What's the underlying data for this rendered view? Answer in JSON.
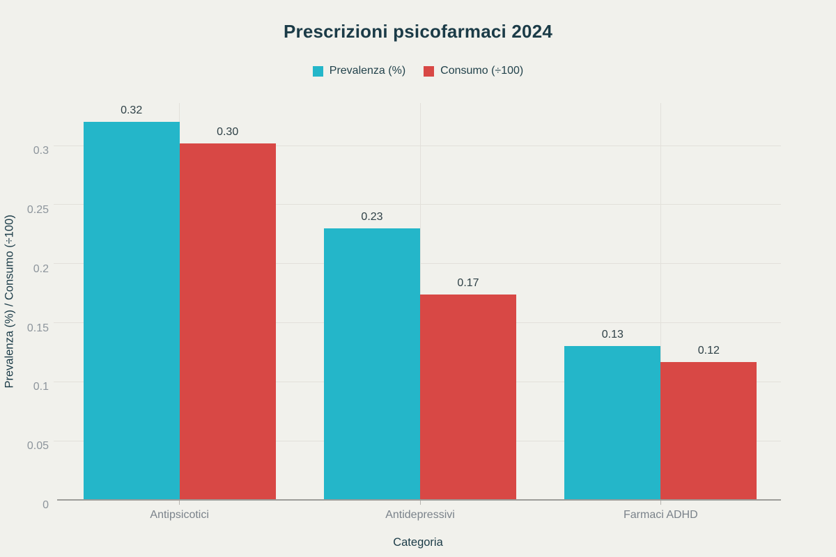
{
  "chart_data": {
    "type": "bar",
    "title": "Prescrizioni psicofarmaci 2024",
    "xlabel": "Categoria",
    "ylabel": "Prevalenza (%) / Consumo (÷100)",
    "categories": [
      "Antipsicotici",
      "Antidepressivi",
      "Farmaci ADHD"
    ],
    "series": [
      {
        "name": "Prevalenza (%)",
        "color": "#24b6c9",
        "values": [
          0.32,
          0.23,
          0.13
        ],
        "labels": [
          "0.32",
          "0.23",
          "0.13"
        ]
      },
      {
        "name": "Consumo (÷100)",
        "color": "#d84845",
        "values": [
          0.302,
          0.174,
          0.117
        ],
        "labels": [
          "0.30",
          "0.17",
          "0.12"
        ]
      }
    ],
    "yticks": [
      {
        "label": "0",
        "value": 0
      },
      {
        "label": "0.05",
        "value": 0.05
      },
      {
        "label": "0.1",
        "value": 0.1
      },
      {
        "label": "0.15",
        "value": 0.15
      },
      {
        "label": "0.2",
        "value": 0.2
      },
      {
        "label": "0.25",
        "value": 0.25
      },
      {
        "label": "0.3",
        "value": 0.3
      }
    ],
    "ylim": [
      0,
      0.336
    ],
    "grid": true,
    "legend_position": "top"
  },
  "colors": {
    "background": "#f1f1ec",
    "title_text": "#1b3b47",
    "axis_title_text": "#1b3b47",
    "legend_text": "#22424b",
    "tick_label_text": "#8d959c",
    "category_label_text": "#7a828a",
    "data_label_text": "#2e4046",
    "gridline": "#e2e0da",
    "axis_line": "#9c9c99",
    "xtick_mark": "#b7b5b0"
  }
}
